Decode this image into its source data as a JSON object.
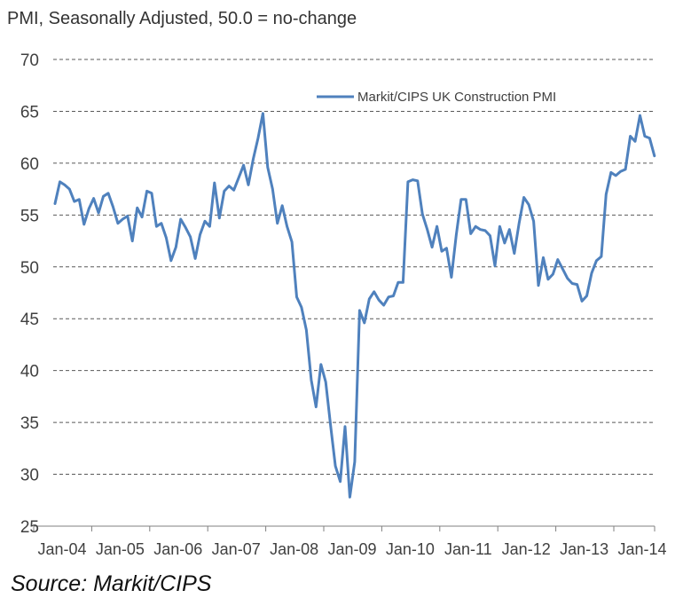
{
  "subtitle": "PMI, Seasonally Adjusted, 50.0 = no-change",
  "source": "Source: Markit/CIPS",
  "chart_data": {
    "type": "line",
    "ylim": [
      25,
      70
    ],
    "yticks": [
      25,
      30,
      35,
      40,
      45,
      50,
      55,
      60,
      65,
      70
    ],
    "xtick_labels": [
      "Jan-04",
      "Jan-05",
      "Jan-06",
      "Jan-07",
      "Jan-08",
      "Jan-09",
      "Jan-10",
      "Jan-11",
      "Jan-12",
      "Jan-13",
      "Jan-14"
    ],
    "grid": true,
    "legend_position": "top-right",
    "colors": {
      "line": "#4f81bd",
      "grid": "#595959",
      "axis": "#808080"
    },
    "series": [
      {
        "name": "Markit/CIPS UK Construction PMI",
        "start": "Jan-04",
        "frequency": "monthly",
        "values": [
          56.1,
          58.2,
          57.9,
          57.5,
          56.3,
          56.5,
          54.1,
          55.6,
          56.6,
          55.2,
          56.8,
          57.1,
          55.8,
          54.2,
          54.6,
          54.9,
          52.5,
          55.7,
          54.8,
          57.3,
          57.1,
          53.9,
          54.2,
          52.8,
          50.6,
          51.9,
          54.6,
          53.8,
          52.9,
          50.8,
          53.1,
          54.4,
          53.9,
          58.1,
          54.7,
          57.3,
          57.8,
          57.4,
          58.6,
          59.8,
          57.9,
          60.4,
          62.4,
          64.8,
          59.6,
          57.5,
          54.2,
          55.9,
          53.9,
          52.4,
          47.1,
          46.1,
          43.9,
          39.1,
          36.5,
          40.6,
          38.9,
          34.7,
          30.8,
          29.3,
          34.6,
          27.8,
          31.2,
          45.8,
          44.6,
          46.9,
          47.6,
          46.8,
          46.3,
          47.1,
          47.2,
          48.5,
          48.5,
          58.2,
          58.4,
          58.3,
          55.1,
          53.6,
          51.9,
          53.9,
          51.5,
          51.8,
          49.0,
          53.1,
          56.5,
          56.5,
          53.2,
          53.9,
          53.6,
          53.5,
          53.0,
          50.1,
          53.9,
          52.3,
          53.6,
          51.3,
          54.2,
          56.7,
          56.0,
          54.4,
          48.2,
          50.9,
          48.8,
          49.3,
          50.7,
          49.8,
          48.9,
          48.4,
          48.3,
          46.7,
          47.2,
          49.4,
          50.6,
          51.0,
          57.0,
          59.1,
          58.8,
          59.2,
          59.4,
          62.6,
          62.1,
          64.6,
          62.6,
          62.4,
          60.7
        ]
      }
    ]
  }
}
